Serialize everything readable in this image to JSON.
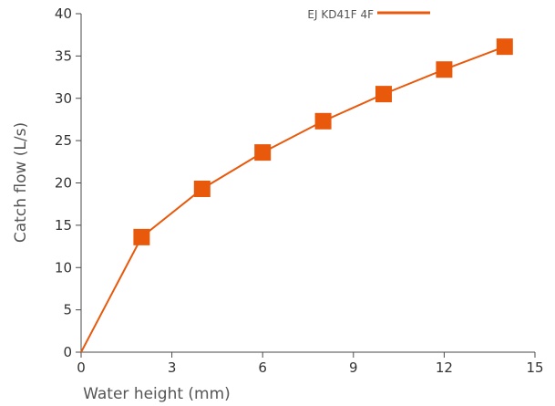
{
  "chart_data": {
    "type": "line",
    "xlabel": "Water height (mm)",
    "ylabel": "Catch flow (L/s)",
    "xlim": [
      0,
      15
    ],
    "ylim": [
      0,
      40
    ],
    "xticks": [
      "0",
      "3",
      "6",
      "9",
      "12",
      "15"
    ],
    "yticks": [
      "0",
      "5",
      "10",
      "15",
      "20",
      "25",
      "30",
      "35",
      "40"
    ],
    "grid": false,
    "legend_position": "top-center",
    "series": [
      {
        "name": "EJ KD41F 4F",
        "color": "#e8590c",
        "marker": "square",
        "x": [
          0,
          2,
          4,
          6,
          8,
          10,
          12,
          14
        ],
        "y": [
          0,
          13.6,
          19.3,
          23.6,
          27.3,
          30.5,
          33.4,
          36.1
        ]
      }
    ]
  }
}
